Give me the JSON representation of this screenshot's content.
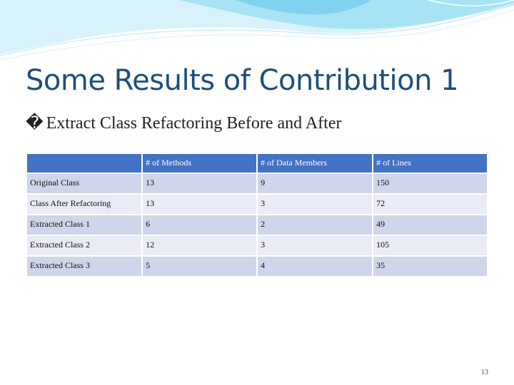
{
  "slide": {
    "title": "Some Results of Contribution 1",
    "bullet_glyph": "�",
    "bullet_text": "Extract Class Refactoring Before and After",
    "page_number": "13"
  },
  "table": {
    "headers": [
      "",
      "# of Methods",
      "# of Data Members",
      "# of Lines"
    ],
    "rows": [
      [
        "Original Class",
        "13",
        "9",
        "150"
      ],
      [
        "Class After Refactoring",
        "13",
        "3",
        "72"
      ],
      [
        "Extracted Class 1",
        "6",
        "2",
        "49"
      ],
      [
        "Extracted Class 2",
        "12",
        "3",
        "105"
      ],
      [
        "Extracted Class 3",
        "5",
        "4",
        "35"
      ]
    ]
  },
  "colors": {
    "title": "#1f4e79",
    "header_bg": "#4472c4",
    "row_odd": "#cfd5ea",
    "row_even": "#e9ebf5",
    "wave_light": "#cdeefa",
    "wave_mid": "#7fd3ee"
  }
}
